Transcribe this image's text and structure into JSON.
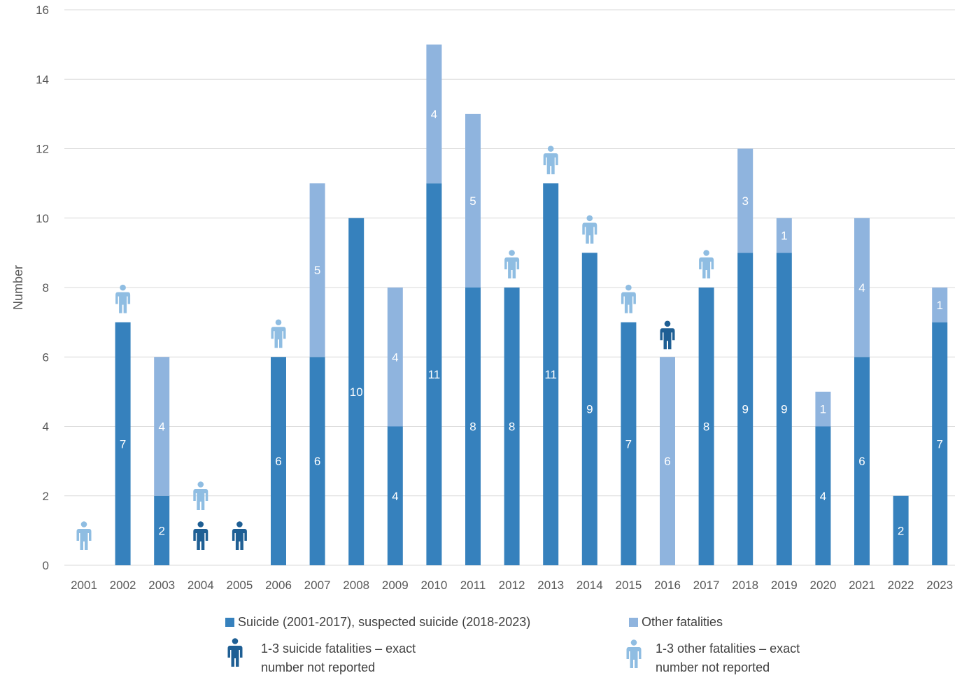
{
  "chart_data": {
    "type": "bar",
    "stacked": true,
    "ylabel": "Number",
    "xlabel": "",
    "ylim": [
      0,
      16
    ],
    "yticks": [
      0,
      2,
      4,
      6,
      8,
      10,
      12,
      14,
      16
    ],
    "grid": true,
    "categories": [
      "2001",
      "2002",
      "2003",
      "2004",
      "2005",
      "2006",
      "2007",
      "2008",
      "2009",
      "2010",
      "2011",
      "2012",
      "2013",
      "2014",
      "2015",
      "2016",
      "2017",
      "2018",
      "2019",
      "2020",
      "2021",
      "2022",
      "2023"
    ],
    "series": [
      {
        "name": "Suicide (2001-2017), suspected suicide (2018-2023)",
        "color": "#3681bd",
        "values": [
          0,
          7,
          2,
          0,
          0,
          6,
          6,
          10,
          4,
          11,
          8,
          8,
          11,
          9,
          7,
          0,
          8,
          9,
          9,
          4,
          6,
          2,
          7
        ]
      },
      {
        "name": "Other fatalities",
        "color": "#8fb4de",
        "values": [
          0,
          0,
          4,
          0,
          0,
          0,
          5,
          0,
          4,
          4,
          5,
          0,
          0,
          0,
          0,
          6,
          0,
          3,
          1,
          1,
          4,
          0,
          1
        ]
      }
    ],
    "markers": {
      "suicide_icon": {
        "label": "1-3 suicide fatalities – exact number not reported",
        "color": "#1f5f94",
        "years": [
          "2004",
          "2005",
          "2016"
        ]
      },
      "other_icon": {
        "label": "1-3 other fatalities – exact number not reported",
        "color": "#8fbde2",
        "years": [
          "2001",
          "2002",
          "2004",
          "2006",
          "2012",
          "2013",
          "2014",
          "2015",
          "2017"
        ]
      }
    },
    "legend": {
      "placement": "bottom",
      "items": [
        {
          "type": "swatch",
          "series": 0,
          "text": "Suicide (2001-2017), suspected suicide (2018-2023)"
        },
        {
          "type": "swatch",
          "series": 1,
          "text": "Other fatalities"
        },
        {
          "type": "icon",
          "marker": "suicide_icon",
          "lines": [
            "1-3 suicide fatalities – exact",
            "number not reported"
          ]
        },
        {
          "type": "icon",
          "marker": "other_icon",
          "lines": [
            "1-3 other fatalities – exact",
            "number not reported"
          ]
        }
      ]
    }
  }
}
